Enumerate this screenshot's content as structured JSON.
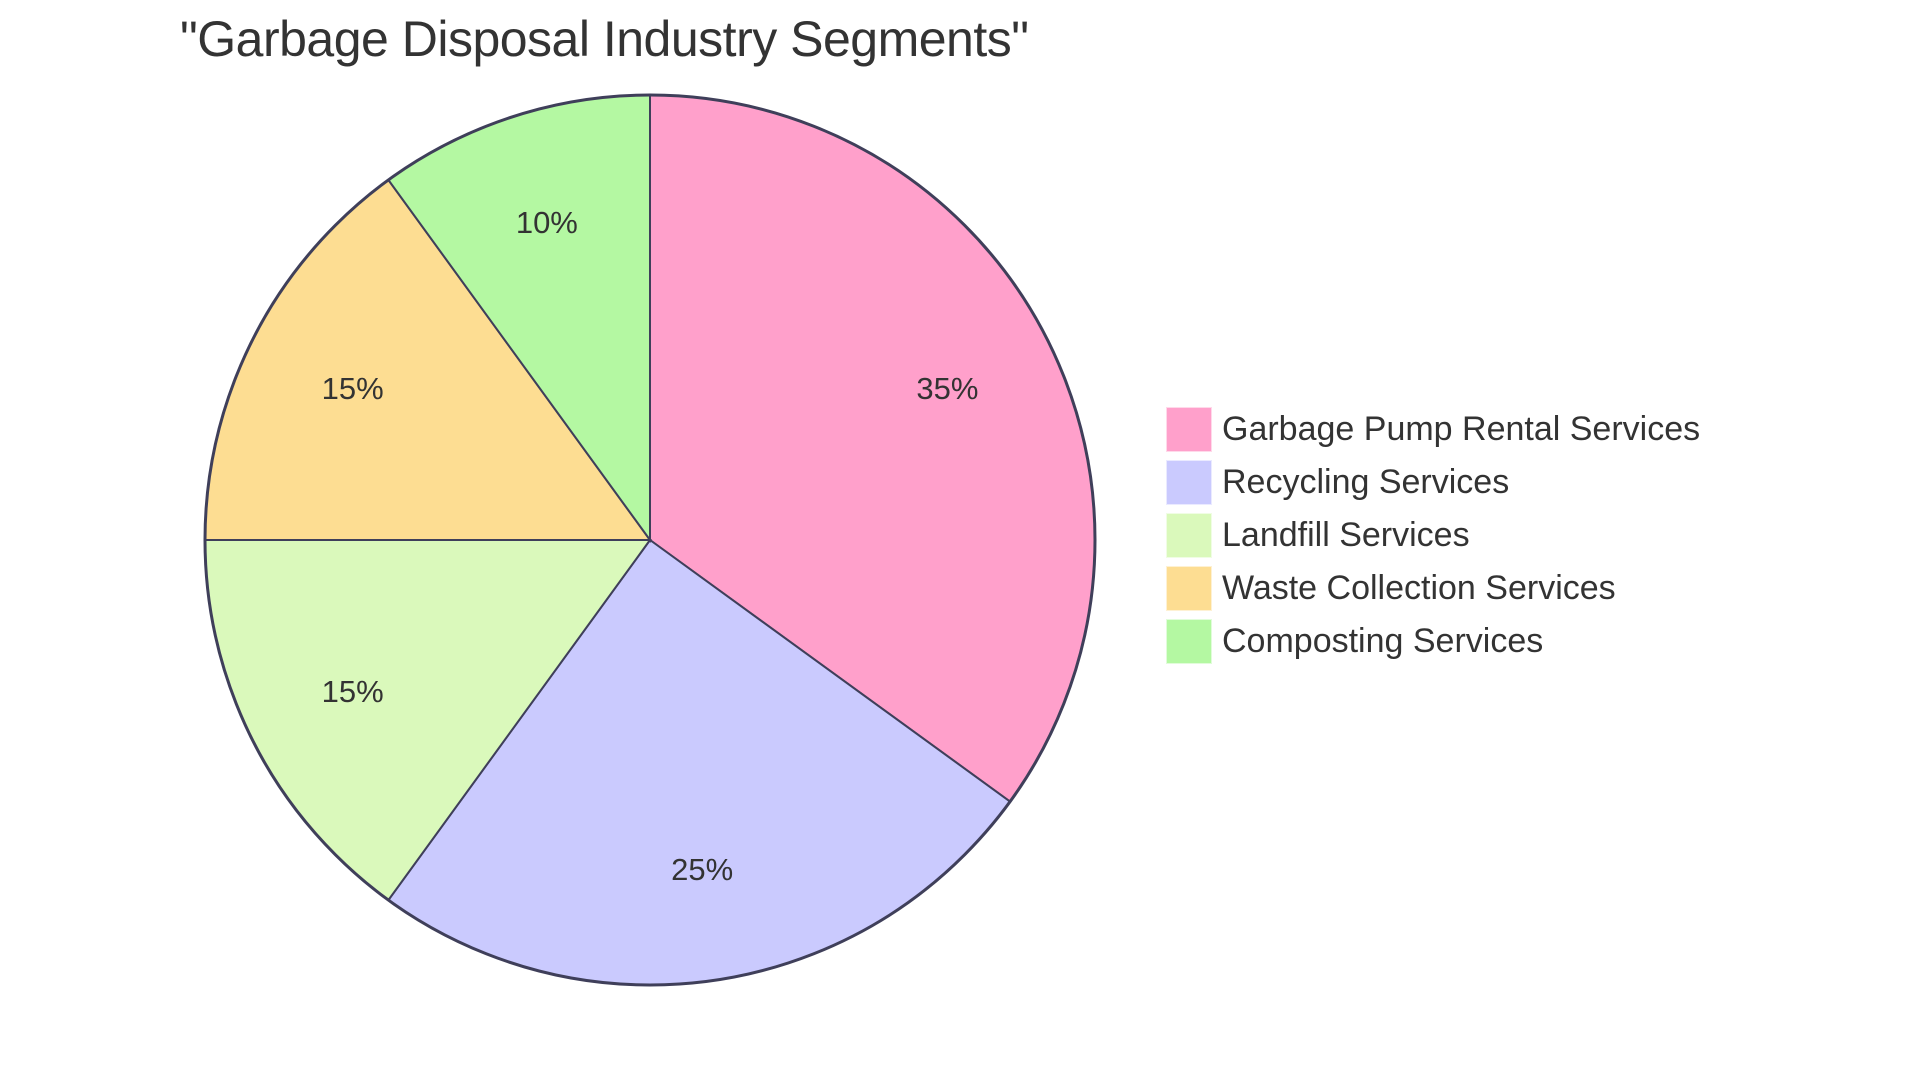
{
  "chart_data": {
    "type": "pie",
    "title": "\"Garbage Disposal Industry Segments\"",
    "categories": [
      "Garbage Pump Rental Services",
      "Recycling Services",
      "Landfill Services",
      "Waste Collection Services",
      "Composting Services"
    ],
    "values": [
      35,
      25,
      15,
      15,
      10
    ],
    "labels": [
      "35%",
      "25%",
      "15%",
      "15%",
      "10%"
    ],
    "colors": [
      "#FFA0CB",
      "#CACAFE",
      "#DAF9BB",
      "#FDDD92",
      "#B4F8A2"
    ],
    "legend_position": "right",
    "start_angle": "12 o'clock, clockwise"
  },
  "title": "\"Garbage Disposal Industry Segments\"",
  "legend": {
    "items": [
      {
        "label": "Garbage Pump Rental Services",
        "color": "#FFA0CB"
      },
      {
        "label": "Recycling Services",
        "color": "#CACAFE"
      },
      {
        "label": "Landfill Services",
        "color": "#DAF9BB"
      },
      {
        "label": "Waste Collection Services",
        "color": "#FDDD92"
      },
      {
        "label": "Composting Services",
        "color": "#B4F8A2"
      }
    ]
  },
  "stroke_color": "#3F3F5A"
}
